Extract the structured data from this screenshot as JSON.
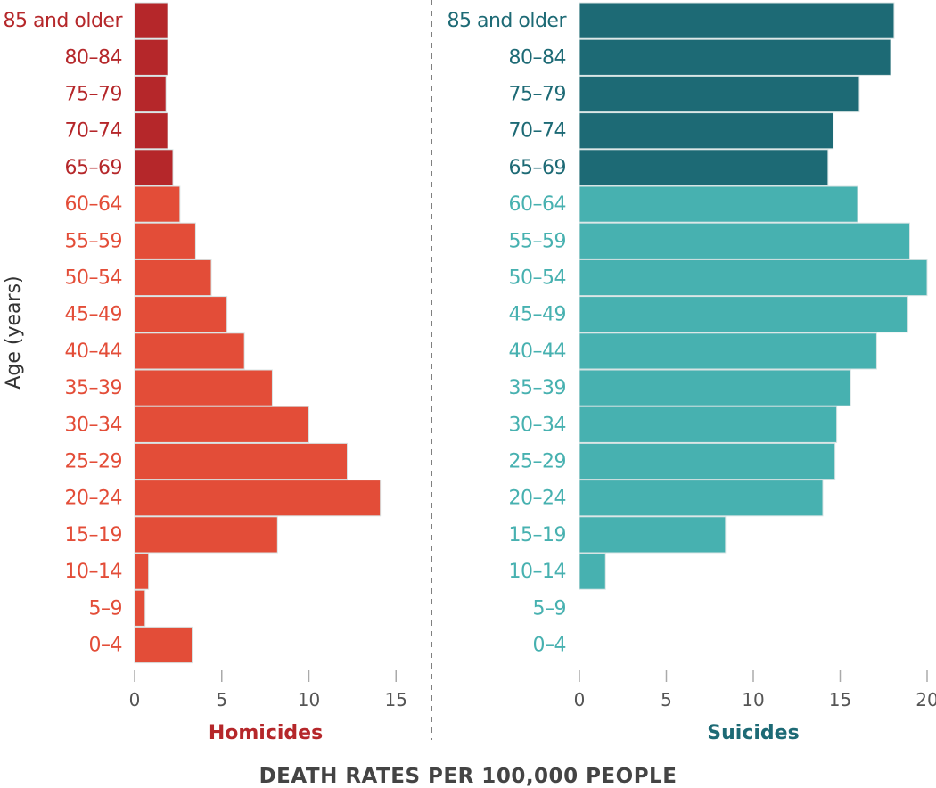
{
  "chart_data": [
    {
      "type": "bar",
      "orientation": "horizontal",
      "title": "Homicides",
      "xlabel": "Homicides",
      "ylabel": "Age (years)",
      "xlim": [
        0,
        15
      ],
      "xticks": [
        0,
        5,
        10,
        15
      ],
      "categories": [
        "85 and older",
        "80–84",
        "75–79",
        "70–74",
        "65–69",
        "60–64",
        "55–59",
        "50–54",
        "45–49",
        "40–44",
        "35–39",
        "30–34",
        "25–29",
        "20–24",
        "15–19",
        "10–14",
        "5–9",
        "0–4"
      ],
      "values": [
        1.9,
        1.9,
        1.8,
        1.9,
        2.2,
        2.6,
        3.5,
        4.4,
        5.3,
        6.3,
        7.9,
        10.0,
        12.2,
        14.1,
        8.2,
        0.8,
        0.6,
        3.3
      ],
      "colors": {
        "older": "#b5272a",
        "younger": "#e34d38"
      }
    },
    {
      "type": "bar",
      "orientation": "horizontal",
      "title": "Suicides",
      "xlabel": "Suicides",
      "xlim": [
        0,
        20
      ],
      "xticks": [
        0,
        5,
        10,
        15,
        20
      ],
      "categories": [
        "85 and older",
        "80–84",
        "75–79",
        "70–74",
        "65–69",
        "60–64",
        "55–59",
        "50–54",
        "45–49",
        "40–44",
        "35–39",
        "30–34",
        "25–29",
        "20–24",
        "15–19",
        "10–14",
        "5–9",
        "0–4"
      ],
      "values": [
        18.1,
        17.9,
        16.1,
        14.6,
        14.3,
        16.0,
        19.0,
        20.0,
        18.9,
        17.1,
        15.6,
        14.8,
        14.7,
        14.0,
        8.4,
        1.5,
        0,
        0
      ],
      "colors": {
        "older": "#1d6a75",
        "younger": "#47b1b0"
      }
    }
  ],
  "shared_xlabel": "DEATH RATES PER 100,000 PEOPLE",
  "older_group_count": 5
}
